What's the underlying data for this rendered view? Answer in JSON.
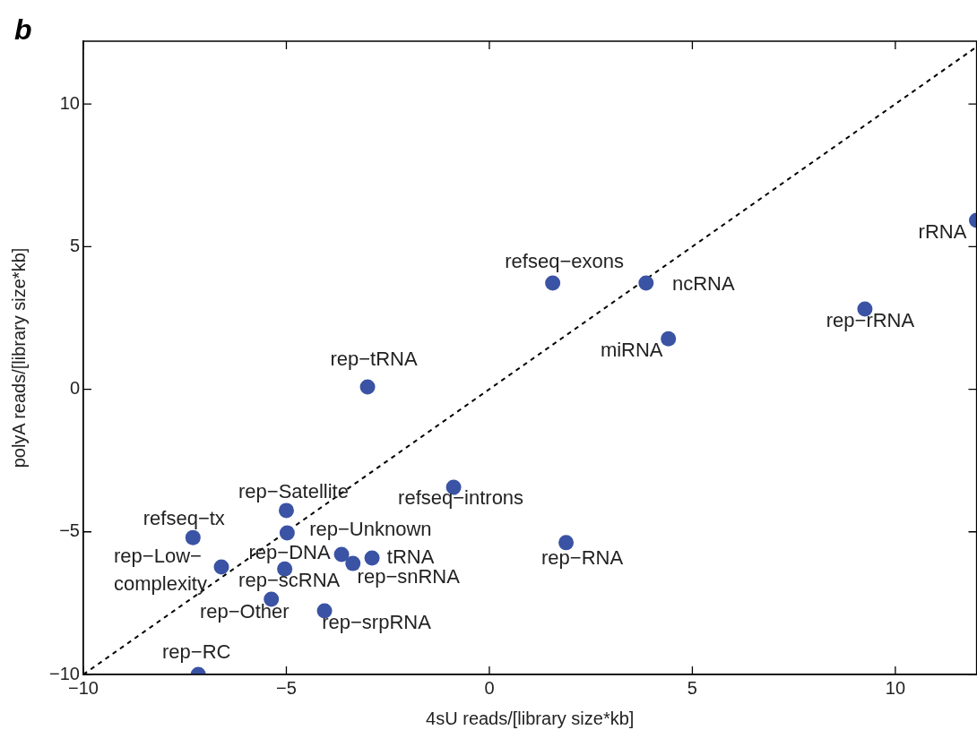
{
  "chart_data": {
    "type": "scatter",
    "xlabel": "4sU reads/[library size*kb]",
    "ylabel": "polyA reads/[library size*kb]",
    "xlim": [
      -10,
      12
    ],
    "ylim": [
      -10,
      12.2
    ],
    "xticks": [
      {
        "value": -10,
        "label": "−10"
      },
      {
        "value": -5,
        "label": "−5"
      },
      0,
      5,
      10
    ],
    "yticks": [
      {
        "value": -10,
        "label": "−10"
      },
      {
        "value": -5,
        "label": "−5"
      },
      0,
      5,
      10
    ],
    "grid": false,
    "legend": false,
    "marker": "circle",
    "series": [
      {
        "type": "scatter",
        "color": "#3a53a4",
        "x": [
          12.0,
          1.56,
          3.86,
          4.41,
          9.25,
          -3.0,
          -0.88,
          -5.0,
          -7.3,
          -4.98,
          -3.64,
          -2.89,
          -3.36,
          1.89,
          -6.6,
          -5.04,
          -5.37,
          -4.06,
          -7.17
        ],
        "values": [
          5.92,
          3.72,
          3.72,
          1.77,
          2.81,
          0.08,
          -3.44,
          -4.25,
          -5.2,
          -5.04,
          -5.79,
          -5.92,
          -6.11,
          -5.38,
          -6.23,
          -6.3,
          -7.36,
          -7.77,
          -10.0
        ]
      },
      {
        "type": "line",
        "color": "#000000",
        "line_style": "dashed",
        "marker": "none",
        "x": [
          -10,
          12
        ],
        "values": [
          -10,
          12
        ]
      }
    ],
    "annotations": [
      "b",
      {
        "text": "rRNA",
        "x": 12.0,
        "y": 5.92
      },
      {
        "text": "refseq−exons",
        "x": 1.56,
        "y": 3.72
      },
      {
        "text": "ncRNA",
        "x": 3.86,
        "y": 3.72
      },
      {
        "text": "miRNA",
        "x": 4.41,
        "y": 1.77
      },
      {
        "text": "rep−rRNA",
        "x": 9.25,
        "y": 2.81
      },
      {
        "text": "rep−tRNA",
        "x": -3.0,
        "y": 0.08
      },
      {
        "text": "refseq−introns",
        "x": -0.88,
        "y": -3.44
      },
      {
        "text": "rep−Satellite",
        "x": -5.0,
        "y": -4.25
      },
      {
        "text": "refseq−tx",
        "x": -7.3,
        "y": -5.2
      },
      {
        "text": "rep−Unknown",
        "x": -4.98,
        "y": -5.04
      },
      {
        "text": "rep−DNA",
        "x": -3.64,
        "y": -5.79
      },
      {
        "text": "tRNA",
        "x": -2.89,
        "y": -5.92
      },
      {
        "text": "rep−snRNA",
        "x": -3.36,
        "y": -6.11
      },
      {
        "text": "rep−RNA",
        "x": 1.89,
        "y": -5.38
      },
      {
        "text": "rep−Low−complexity",
        "x": -6.6,
        "y": -6.23
      },
      {
        "text": "rep−scRNA",
        "x": -5.04,
        "y": -6.3
      },
      {
        "text": "rep−Other",
        "x": -5.37,
        "y": -7.36
      },
      {
        "text": "rep−srpRNA",
        "x": -4.06,
        "y": -7.77
      },
      {
        "text": "rep−RC",
        "x": -7.17,
        "y": -10.0
      }
    ]
  }
}
